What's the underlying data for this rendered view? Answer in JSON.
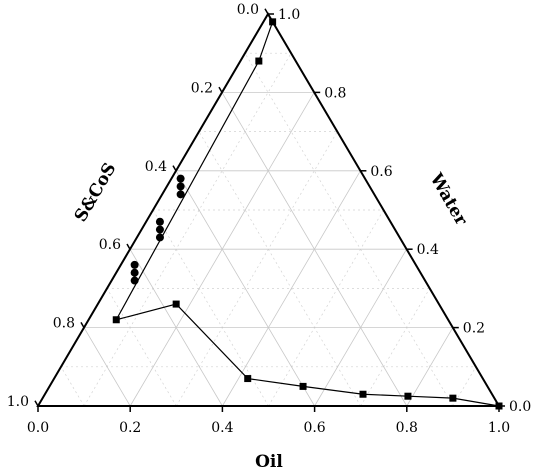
{
  "chart_data": {
    "type": "scatter",
    "subtype": "ternary",
    "axes": {
      "oil": {
        "label": "Oil",
        "ticks": [
          "0.0",
          "0.2",
          "0.4",
          "0.6",
          "0.8",
          "1.0"
        ]
      },
      "water": {
        "label": "Water",
        "ticks": [
          "0.0",
          "0.2",
          "0.4",
          "0.6",
          "0.8",
          "1.0"
        ]
      },
      "scos": {
        "label": "S&CoS",
        "ticks": [
          "0.0",
          "0.2",
          "0.4",
          "0.6",
          "0.8",
          "1.0"
        ]
      }
    },
    "grid": true,
    "series": [
      {
        "marker": "square",
        "connected": true,
        "points": [
          {
            "oil": 0.02,
            "water": 0.98,
            "scos": 0.0
          },
          {
            "oil": 0.04,
            "water": 0.88,
            "scos": 0.08
          },
          {
            "oil": 0.06,
            "water": 0.22,
            "scos": 0.72
          },
          {
            "oil": 0.17,
            "water": 0.26,
            "scos": 0.57
          },
          {
            "oil": 0.42,
            "water": 0.07,
            "scos": 0.51
          },
          {
            "oil": 0.55,
            "water": 0.05,
            "scos": 0.4
          },
          {
            "oil": 0.69,
            "water": 0.03,
            "scos": 0.28
          },
          {
            "oil": 0.79,
            "water": 0.025,
            "scos": 0.185
          },
          {
            "oil": 0.89,
            "water": 0.02,
            "scos": 0.09
          },
          {
            "oil": 1.0,
            "water": 0.0,
            "scos": 0.0
          }
        ]
      },
      {
        "marker": "circle",
        "connected": false,
        "points": [
          {
            "oil": 0.02,
            "water": 0.58,
            "scos": 0.4
          },
          {
            "oil": 0.03,
            "water": 0.56,
            "scos": 0.41
          },
          {
            "oil": 0.04,
            "water": 0.54,
            "scos": 0.42
          },
          {
            "oil": 0.03,
            "water": 0.47,
            "scos": 0.5
          },
          {
            "oil": 0.04,
            "water": 0.45,
            "scos": 0.51
          },
          {
            "oil": 0.05,
            "water": 0.43,
            "scos": 0.52
          },
          {
            "oil": 0.03,
            "water": 0.36,
            "scos": 0.61
          },
          {
            "oil": 0.04,
            "water": 0.34,
            "scos": 0.62
          },
          {
            "oil": 0.05,
            "water": 0.32,
            "scos": 0.63
          }
        ]
      }
    ]
  }
}
